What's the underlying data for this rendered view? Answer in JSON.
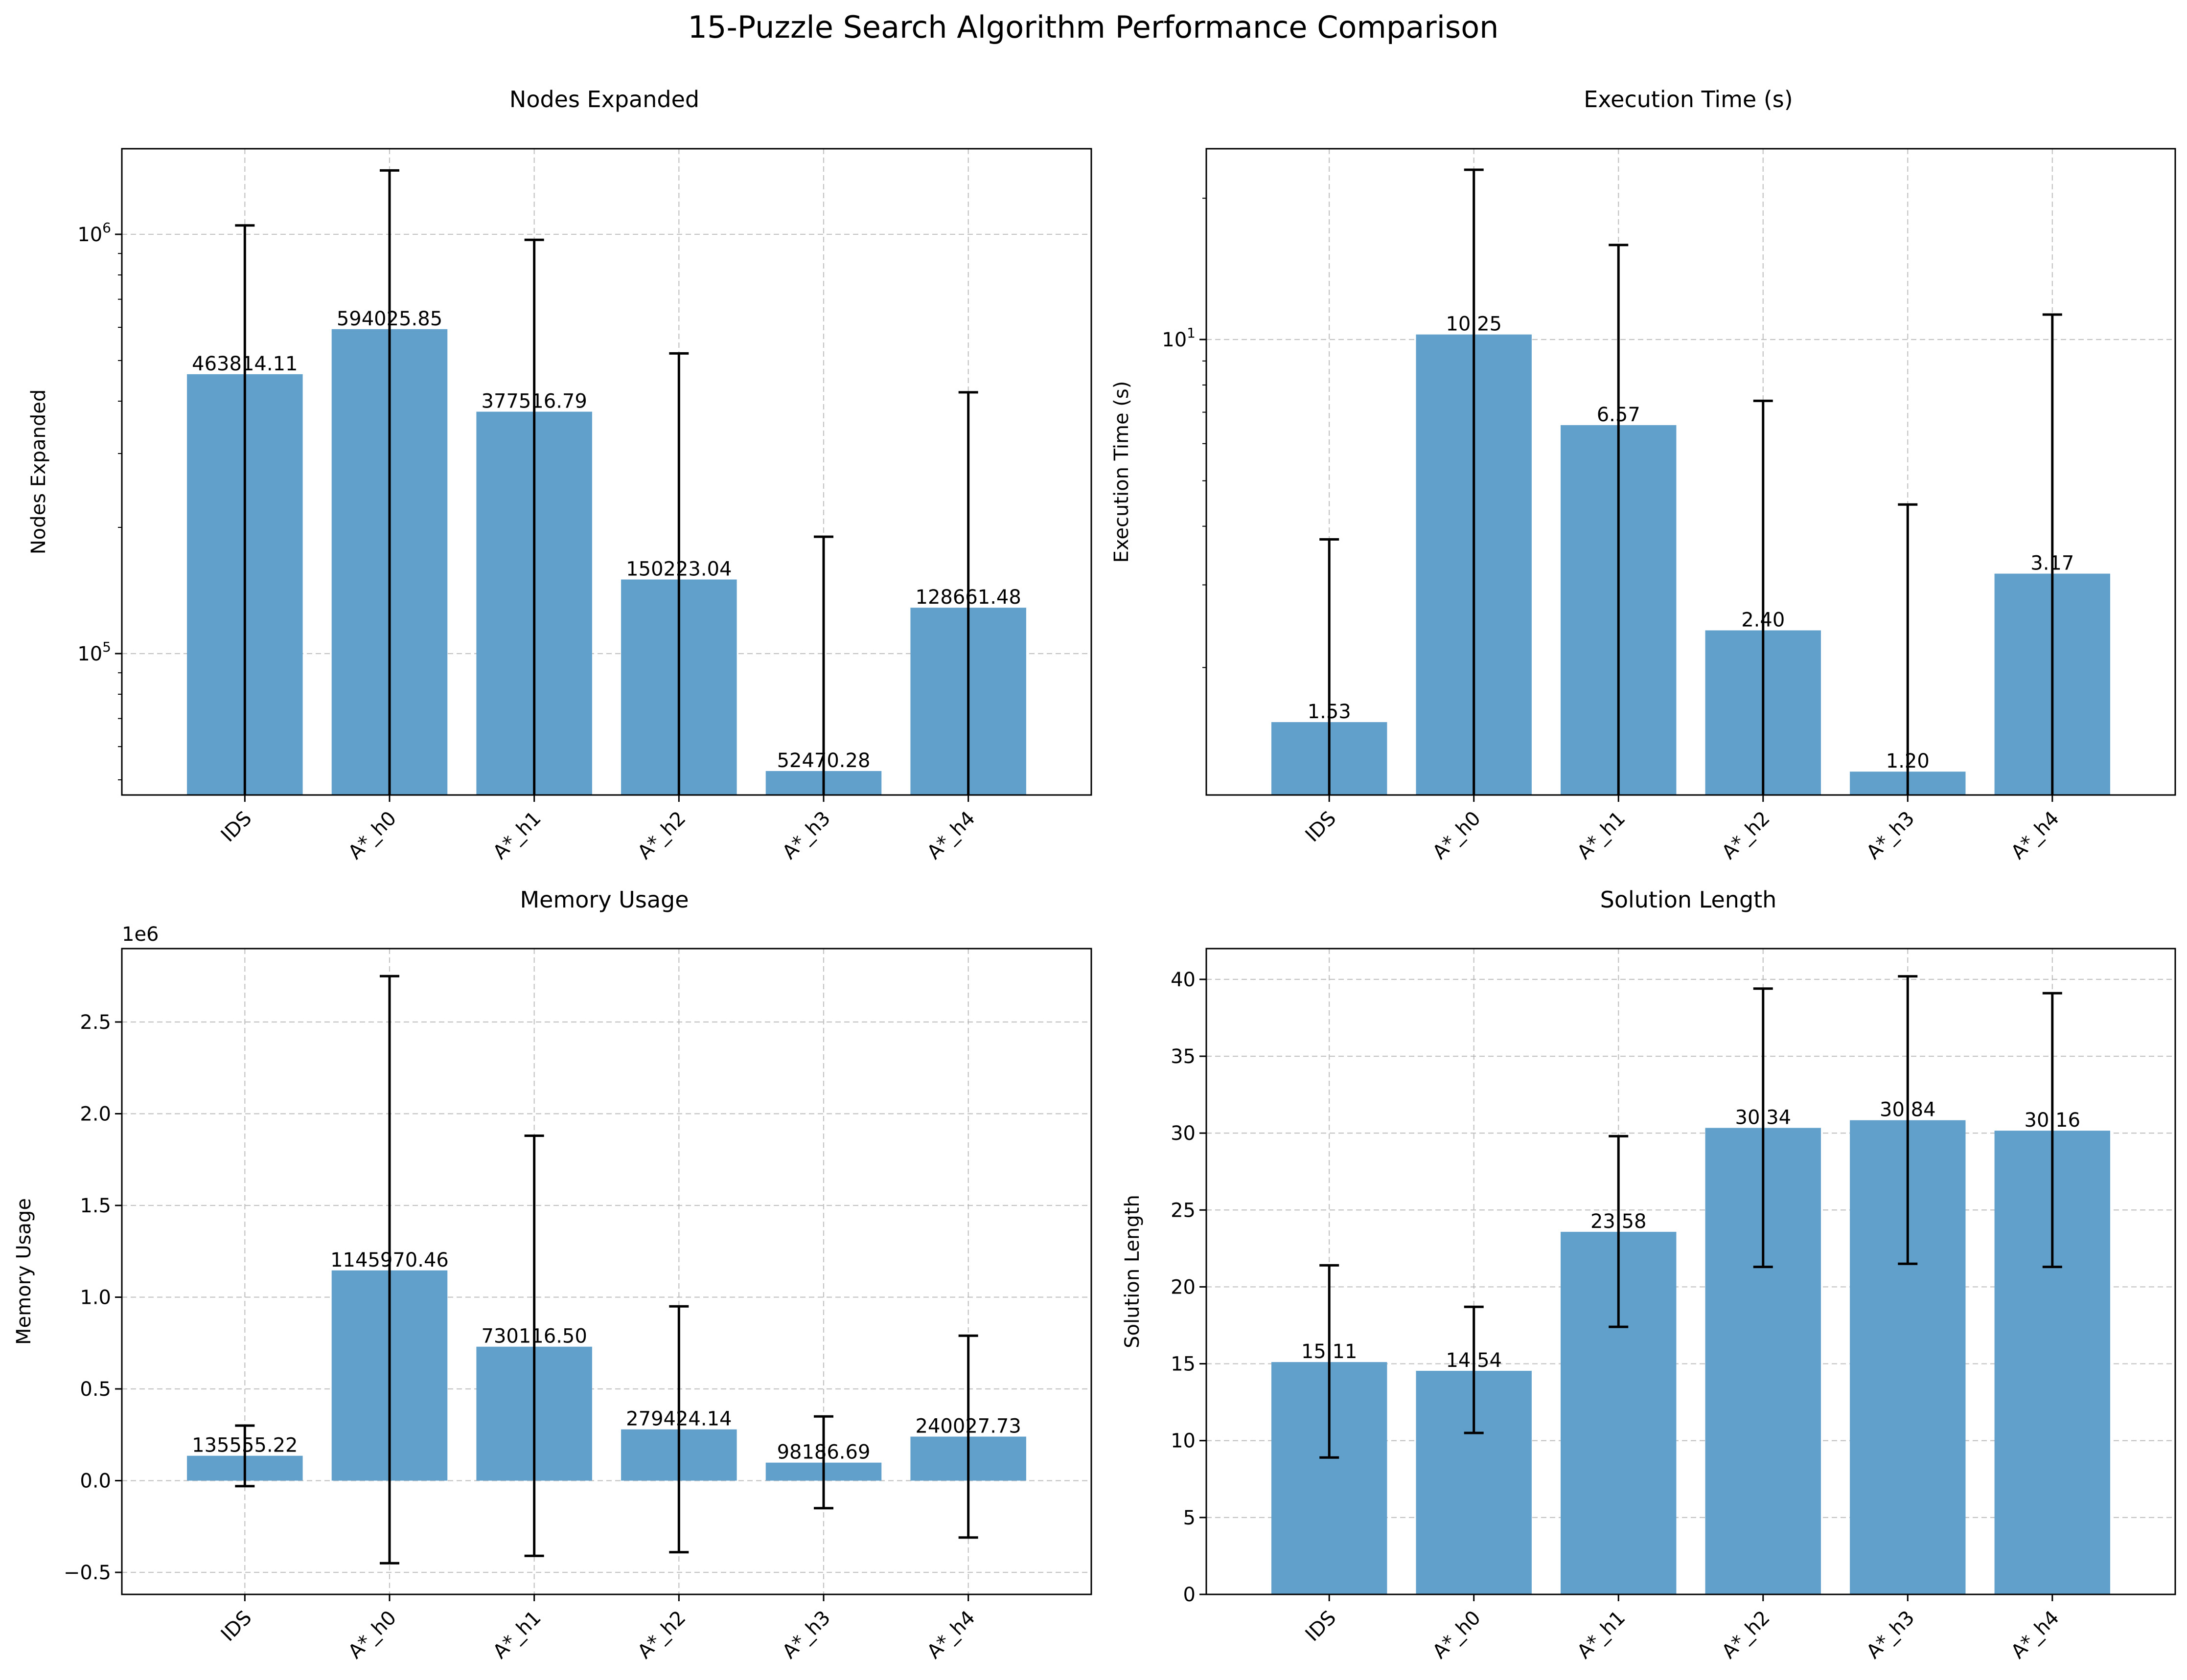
{
  "figure": {
    "title": "15-Puzzle Search Algorithm Performance Comparison"
  },
  "colors": {
    "bar": "#62a0cc",
    "error_bar": "#000000",
    "grid": "#b0b0b0"
  },
  "chart_data": [
    {
      "type": "bar",
      "title": "Nodes Expanded",
      "xlabel": "",
      "ylabel": "Nodes Expanded",
      "yscale": "log",
      "ylim": [
        46000,
        1600000
      ],
      "yticks": [
        100000,
        1000000
      ],
      "ytick_labels": [
        {
          "base": "10",
          "exp": "5"
        },
        {
          "base": "10",
          "exp": "6"
        }
      ],
      "grid": true,
      "categories": [
        "IDS",
        "A*_h0",
        "A*_h1",
        "A*_h2",
        "A*_h3",
        "A*_h4"
      ],
      "values": [
        463814.11,
        594025.85,
        377516.79,
        150223.04,
        52470.28,
        128661.48
      ],
      "value_labels": [
        "463814.11",
        "594025.85",
        "377516.79",
        "150223.04",
        "52470.28",
        "128661.48"
      ],
      "error_upper": [
        1050000,
        1420000,
        970000,
        520000,
        190000,
        420000
      ]
    },
    {
      "type": "bar",
      "title": "Execution Time (s)",
      "xlabel": "",
      "ylabel": "Execution Time (s)",
      "yscale": "log",
      "ylim": [
        1.07,
        25.5
      ],
      "yticks": [
        10
      ],
      "ytick_labels": [
        {
          "base": "10",
          "exp": "1"
        }
      ],
      "grid": true,
      "categories": [
        "IDS",
        "A*_h0",
        "A*_h1",
        "A*_h2",
        "A*_h3",
        "A*_h4"
      ],
      "values": [
        1.53,
        10.25,
        6.57,
        2.4,
        1.2,
        3.17
      ],
      "value_labels": [
        "1.53",
        "10.25",
        "6.57",
        "2.40",
        "1.20",
        "3.17"
      ],
      "error_upper": [
        3.75,
        23.0,
        15.9,
        7.4,
        4.45,
        11.3
      ]
    },
    {
      "type": "bar",
      "title": "Memory Usage",
      "xlabel": "",
      "ylabel": "Memory Usage",
      "yscale": "linear",
      "offset_label": "1e6",
      "ylim": [
        -0.62,
        2.9
      ],
      "yticks": [
        -0.5,
        0.0,
        0.5,
        1.0,
        1.5,
        2.0,
        2.5
      ],
      "ytick_labels": [
        "−0.5",
        "0.0",
        "0.5",
        "1.0",
        "1.5",
        "2.0",
        "2.5"
      ],
      "grid": true,
      "categories": [
        "IDS",
        "A*_h0",
        "A*_h1",
        "A*_h2",
        "A*_h3",
        "A*_h4"
      ],
      "values": [
        0.13555522,
        1.14597046,
        0.7301165,
        0.27942414,
        0.09818669,
        0.24002773
      ],
      "value_labels": [
        "135555.22",
        "1145970.46",
        "730116.50",
        "279424.14",
        "98186.69",
        "240027.73"
      ],
      "error_lower": [
        -0.03,
        -0.45,
        -0.41,
        -0.39,
        -0.15,
        -0.31
      ],
      "error_upper": [
        0.3,
        2.75,
        1.88,
        0.95,
        0.35,
        0.79
      ]
    },
    {
      "type": "bar",
      "title": "Solution Length",
      "xlabel": "",
      "ylabel": "Solution Length",
      "yscale": "linear",
      "ylim": [
        0,
        42
      ],
      "yticks": [
        0,
        5,
        10,
        15,
        20,
        25,
        30,
        35,
        40
      ],
      "ytick_labels": [
        "0",
        "5",
        "10",
        "15",
        "20",
        "25",
        "30",
        "35",
        "40"
      ],
      "grid": true,
      "categories": [
        "IDS",
        "A*_h0",
        "A*_h1",
        "A*_h2",
        "A*_h3",
        "A*_h4"
      ],
      "values": [
        15.11,
        14.54,
        23.58,
        30.34,
        30.84,
        30.16
      ],
      "value_labels": [
        "15.11",
        "14.54",
        "23.58",
        "30.34",
        "30.84",
        "30.16"
      ],
      "error_lower": [
        8.9,
        10.5,
        17.4,
        21.3,
        21.5,
        21.3
      ],
      "error_upper": [
        21.4,
        18.7,
        29.8,
        39.4,
        40.2,
        39.1
      ]
    }
  ]
}
